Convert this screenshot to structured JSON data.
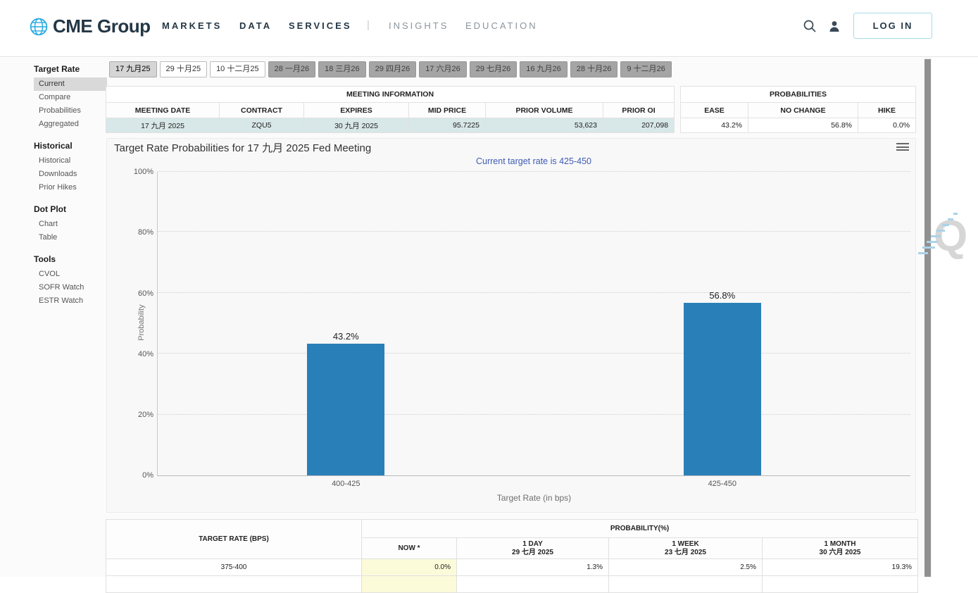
{
  "header": {
    "logo_text": "CME Group",
    "nav": [
      "MARKETS",
      "DATA",
      "SERVICES",
      "INSIGHTS",
      "EDUCATION"
    ],
    "nav_separator": "|",
    "login_label": "LOG IN"
  },
  "sidebar": {
    "sections": [
      {
        "title": "Target Rate",
        "items": [
          "Current",
          "Compare",
          "Probabilities",
          "Aggregated"
        ],
        "active_item": "Current"
      },
      {
        "title": "Historical",
        "items": [
          "Historical",
          "Downloads",
          "Prior Hikes"
        ]
      },
      {
        "title": "Dot Plot",
        "items": [
          "Chart",
          "Table"
        ]
      },
      {
        "title": "Tools",
        "items": [
          "CVOL",
          "SOFR Watch",
          "ESTR Watch"
        ]
      }
    ]
  },
  "tabs": [
    {
      "label": "17 九月25",
      "state": "active"
    },
    {
      "label": "29 十月25",
      "state": "enabled"
    },
    {
      "label": "10 十二月25",
      "state": "enabled"
    },
    {
      "label": "28 一月26",
      "state": "disabled"
    },
    {
      "label": "18 三月26",
      "state": "disabled"
    },
    {
      "label": "29 四月26",
      "state": "disabled"
    },
    {
      "label": "17 六月26",
      "state": "disabled"
    },
    {
      "label": "29 七月26",
      "state": "disabled"
    },
    {
      "label": "16 九月26",
      "state": "disabled"
    },
    {
      "label": "28 十月26",
      "state": "disabled"
    },
    {
      "label": "9 十二月26",
      "state": "disabled"
    }
  ],
  "meeting_info": {
    "title": "MEETING INFORMATION",
    "columns": [
      "MEETING DATE",
      "CONTRACT",
      "EXPIRES",
      "MID PRICE",
      "PRIOR VOLUME",
      "PRIOR OI"
    ],
    "row": [
      "17 九月 2025",
      "ZQU5",
      "30 九月 2025",
      "95.7225",
      "53,623",
      "207,098"
    ]
  },
  "probabilities": {
    "title": "PROBABILITIES",
    "columns": [
      "EASE",
      "NO CHANGE",
      "HIKE"
    ],
    "row": [
      "43.2%",
      "56.8%",
      "0.0%"
    ]
  },
  "chart_data": {
    "type": "bar",
    "title": "Target Rate Probabilities for 17 九月 2025 Fed Meeting",
    "subtitle": "Current target rate is 425-450",
    "categories": [
      "400-425",
      "425-450"
    ],
    "values": [
      43.2,
      56.8
    ],
    "display_values": [
      "43.2%",
      "56.8%"
    ],
    "xlabel": "Target Rate (in bps)",
    "ylabel": "Probability",
    "ylim": [
      0,
      100
    ],
    "yticks": [
      "0%",
      "20%",
      "40%",
      "60%",
      "80%",
      "100%"
    ],
    "grid": "dotted horizontal",
    "bar_color": "#2980b9",
    "bar_centers_pct": [
      25,
      75
    ]
  },
  "bottom_table": {
    "rate_header": "TARGET RATE (BPS)",
    "prob_header": "PROBABILITY(%)",
    "sub_columns": [
      {
        "label": "NOW *",
        "date": ""
      },
      {
        "label": "1 DAY",
        "date": "29 七月 2025"
      },
      {
        "label": "1 WEEK",
        "date": "23 七月 2025"
      },
      {
        "label": "1 MONTH",
        "date": "30 六月 2025"
      }
    ],
    "rows": [
      {
        "rate": "375-400",
        "now": "0.0%",
        "day": "1.3%",
        "week": "2.5%",
        "month": "19.3%"
      }
    ]
  },
  "colors": {
    "brand_blue": "#25a9e0",
    "nav_dark": "#243746",
    "bar_blue": "#2980b9",
    "subtitle_blue": "#3e5bb5",
    "meeting_row_bg": "#d8e7e7",
    "now_cell_bg": "#fbfbda",
    "active_tab_bg": "#d5d5d5",
    "inactive_tab_bg": "#a5a5a5",
    "login_border": "#a5dbe8"
  }
}
